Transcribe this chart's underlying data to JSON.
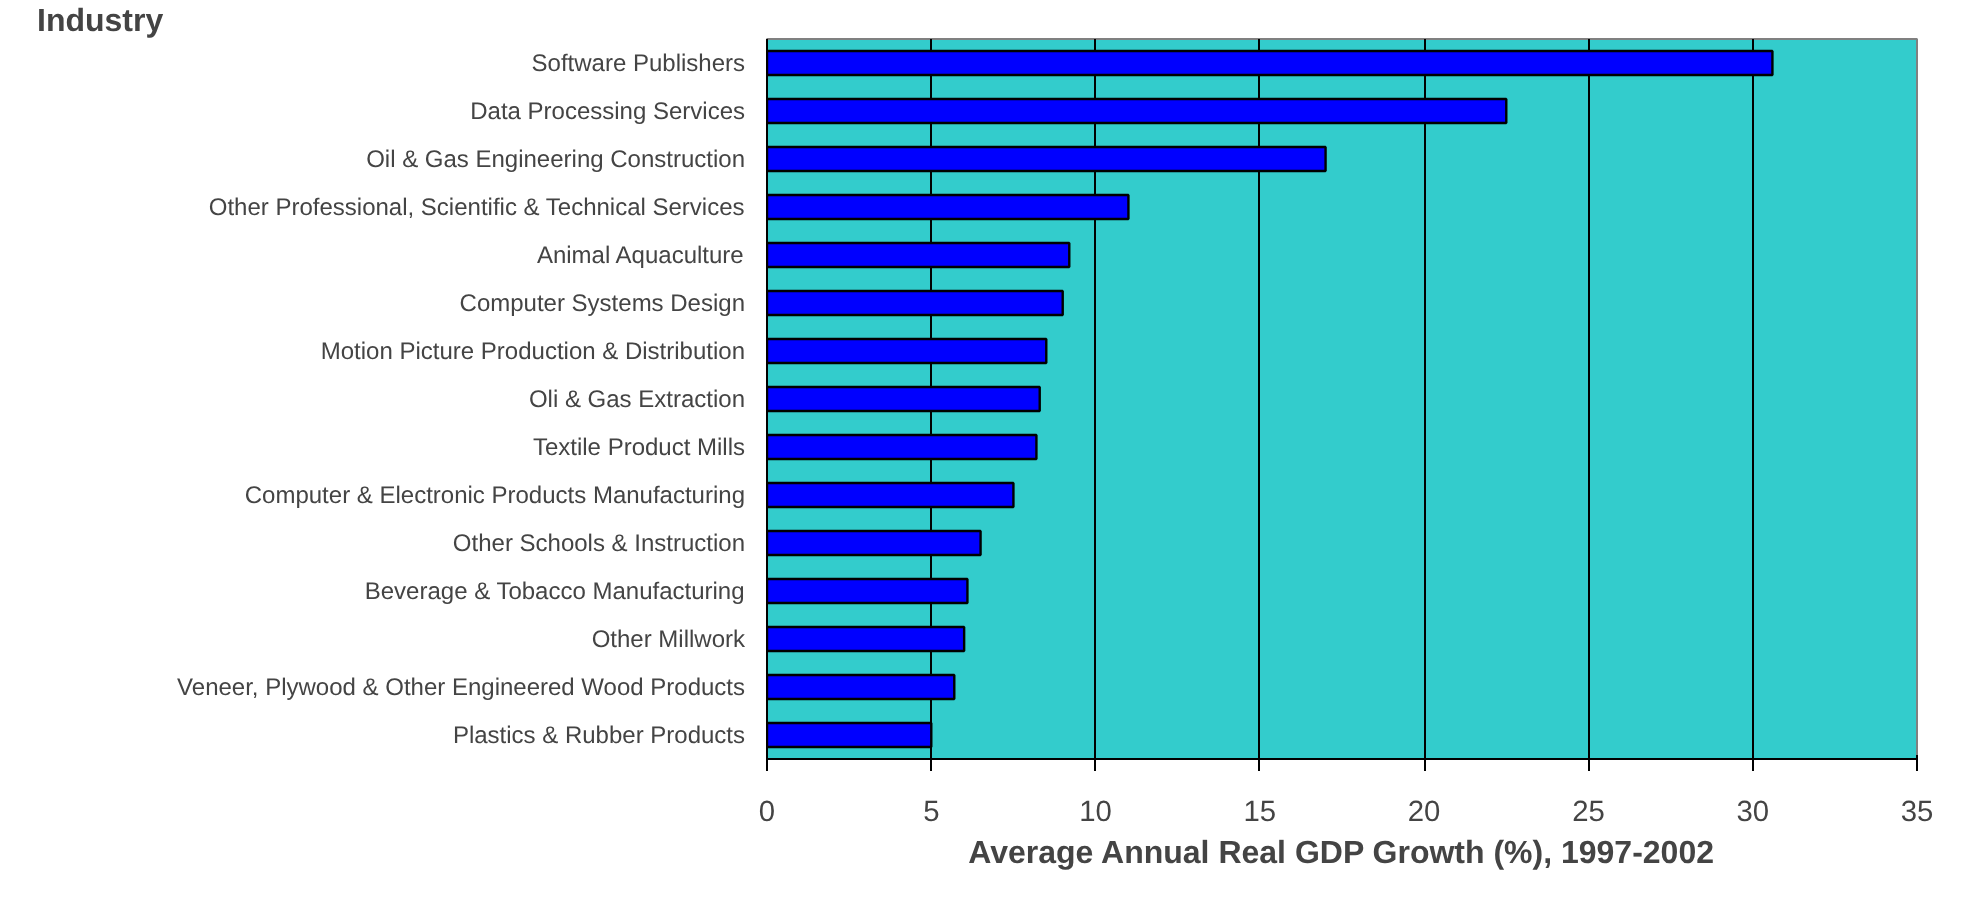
{
  "chart_data": {
    "type": "bar",
    "orientation": "horizontal",
    "ylabel": "Industry",
    "xlabel": "Average Annual Real GDP Growth (%), 1997-2002",
    "categories": [
      "Software Publishers",
      "Data Processing Services",
      "Oil & Gas Engineering Construction",
      "Other Professional, Scientific & Technical Services",
      "Animal Aquaculture",
      "Computer Systems Design",
      "Motion Picture Production & Distribution",
      "Oli & Gas Extraction",
      "Textile Product Mills",
      "Computer & Electronic Products Manufacturing",
      "Other Schools & Instruction",
      "Beverage & Tobacco Manufacturing",
      "Other Millwork",
      "Veneer, Plywood & Other Engineered Wood Products",
      "Plastics & Rubber Products"
    ],
    "values": [
      30.6,
      22.5,
      17.0,
      11.0,
      9.2,
      9.0,
      8.5,
      8.3,
      8.2,
      7.5,
      6.5,
      6.1,
      6.0,
      5.7,
      5.0
    ],
    "color": "#0000ff",
    "xlim": [
      0,
      35
    ],
    "xticks": [
      0,
      5,
      10,
      15,
      20,
      25,
      30,
      35
    ],
    "grid": "x"
  }
}
